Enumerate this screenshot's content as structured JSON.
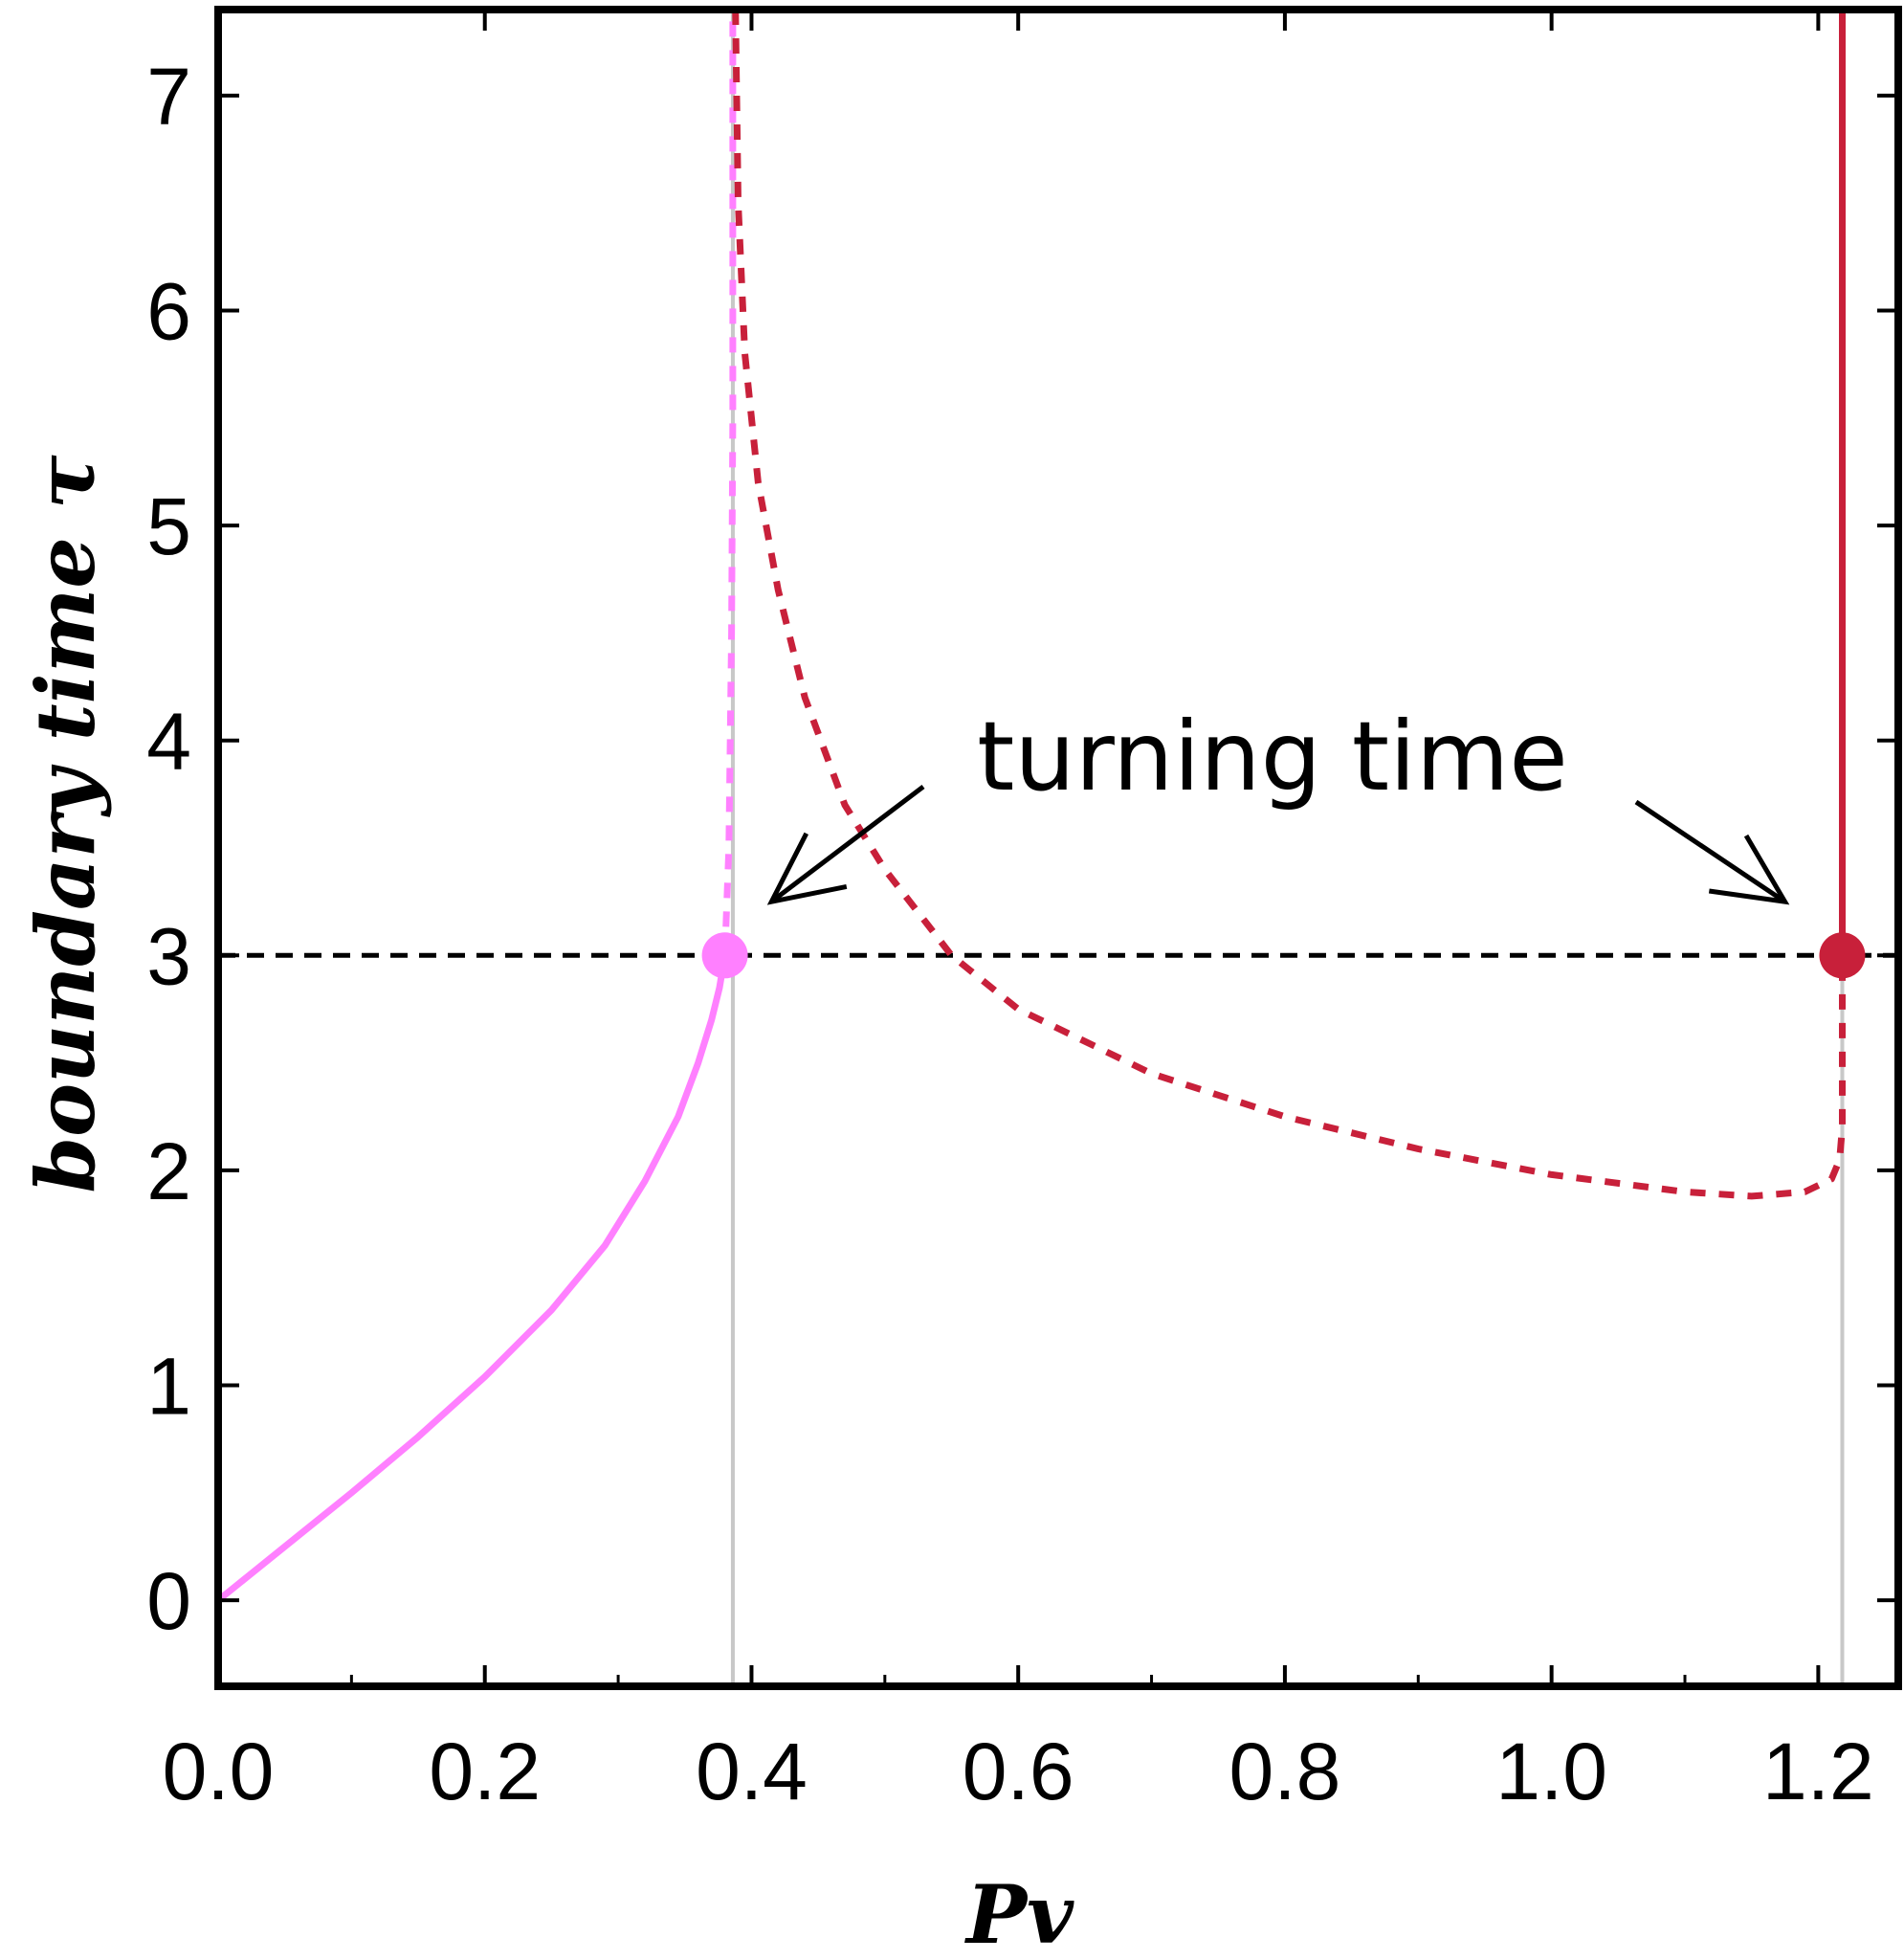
{
  "chart_data": {
    "type": "line",
    "title": "",
    "xlabel": "Pv",
    "ylabel": "boundary time  τ",
    "xlim": [
      0,
      1.26
    ],
    "ylim": [
      -0.4,
      7.4
    ],
    "x_ticks": [
      "0.0",
      "0.2",
      "0.4",
      "0.6",
      "0.8",
      "1.0",
      "1.2"
    ],
    "y_ticks": [
      "0",
      "1",
      "2",
      "3",
      "4",
      "5",
      "6",
      "7"
    ],
    "grid": false,
    "legend": "none",
    "colors": {
      "pink": "#ff80ff",
      "red": "#c8203a",
      "black": "#000000",
      "gray": "#c8c8c8"
    },
    "reference_lines": [
      {
        "orientation": "horizontal",
        "y": 3,
        "style": "dashed",
        "color": "#000000"
      },
      {
        "orientation": "vertical",
        "x": 0.386,
        "style": "solid",
        "color": "#c8c8c8"
      },
      {
        "orientation": "vertical",
        "x": 1.218,
        "style": "solid",
        "color": "#c8c8c8"
      }
    ],
    "series": [
      {
        "color": "#ff80ff",
        "style": "solid",
        "points": [
          [
            0,
            0
          ],
          [
            0.05,
            0.25
          ],
          [
            0.1,
            0.5
          ],
          [
            0.15,
            0.76
          ],
          [
            0.2,
            1.04
          ],
          [
            0.25,
            1.35
          ],
          [
            0.29,
            1.65
          ],
          [
            0.32,
            1.95
          ],
          [
            0.345,
            2.25
          ],
          [
            0.36,
            2.5
          ],
          [
            0.37,
            2.7
          ],
          [
            0.376,
            2.85
          ],
          [
            0.38,
            3.0
          ]
        ]
      },
      {
        "color": "#ff80ff",
        "style": "dashed",
        "points": [
          [
            0.38,
            3.0
          ],
          [
            0.383,
            3.5
          ],
          [
            0.385,
            4.5
          ],
          [
            0.386,
            5.5
          ],
          [
            0.386,
            7.4
          ]
        ]
      },
      {
        "color": "#c8203a",
        "style": "dashed",
        "points": [
          [
            0.388,
            7.4
          ],
          [
            0.39,
            6.5
          ],
          [
            0.395,
            5.8
          ],
          [
            0.405,
            5.2
          ],
          [
            0.42,
            4.7
          ],
          [
            0.44,
            4.2
          ],
          [
            0.47,
            3.7
          ],
          [
            0.5,
            3.4
          ],
          [
            0.55,
            3.0
          ],
          [
            0.6,
            2.75
          ],
          [
            0.7,
            2.45
          ],
          [
            0.8,
            2.25
          ],
          [
            0.9,
            2.1
          ],
          [
            1.0,
            1.98
          ],
          [
            1.1,
            1.9
          ],
          [
            1.15,
            1.88
          ],
          [
            1.19,
            1.9
          ],
          [
            1.21,
            1.96
          ],
          [
            1.216,
            2.05
          ],
          [
            1.218,
            2.2
          ],
          [
            1.218,
            2.6
          ],
          [
            1.218,
            3.0
          ]
        ]
      },
      {
        "color": "#c8203a",
        "style": "solid",
        "points": [
          [
            1.218,
            3.0
          ],
          [
            1.218,
            4.5
          ],
          [
            1.218,
            6.0
          ],
          [
            1.218,
            7.4
          ]
        ]
      }
    ],
    "markers": [
      {
        "x": 0.38,
        "y": 3.0,
        "color": "#ff80ff"
      },
      {
        "x": 1.218,
        "y": 3.0,
        "color": "#c8203a"
      }
    ],
    "annotations": [
      {
        "text": "turning time",
        "arrows_to": [
          [
            0.415,
            3.25
          ],
          [
            1.175,
            3.25
          ]
        ]
      }
    ]
  }
}
